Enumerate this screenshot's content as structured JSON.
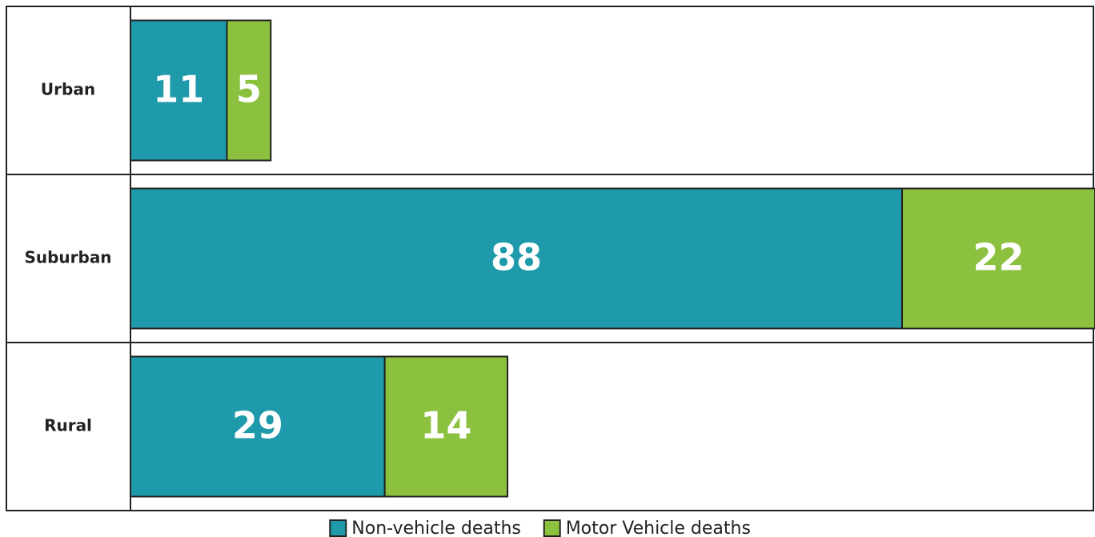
{
  "chart_data": {
    "type": "stacked-bar-horizontal",
    "categories": [
      "Urban",
      "Suburban",
      "Rural"
    ],
    "series": [
      {
        "name": "Non-vehicle deaths",
        "color": "#1e9aab",
        "values": [
          11,
          88,
          29
        ]
      },
      {
        "name": "Motor Vehicle deaths",
        "color": "#8cc13f",
        "values": [
          5,
          22,
          14
        ]
      }
    ],
    "xlim": [
      0,
      110
    ]
  }
}
